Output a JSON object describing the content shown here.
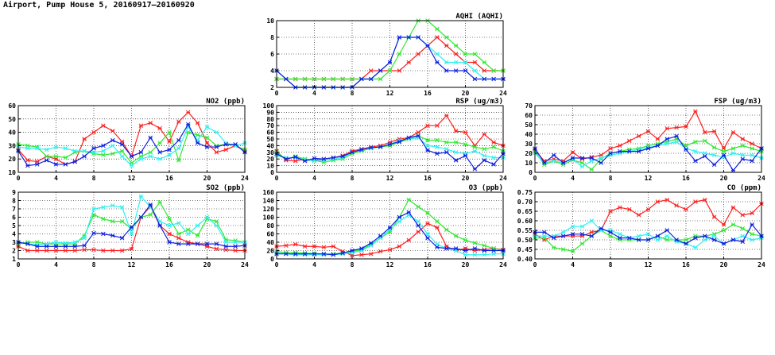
{
  "page": {
    "title": "Airport, Pump House 5, 20160917–20160920"
  },
  "colors": {
    "red": "#ff2020",
    "green": "#30e830",
    "cyan": "#30f0f0",
    "blue": "#1020e0",
    "grid": "#000000",
    "frame": "#000000"
  },
  "chart_data": [
    {
      "id": "aqhi",
      "type": "line",
      "title": "AQHI (AQHI)",
      "xlim": [
        0,
        24
      ],
      "xticks": [
        0,
        4,
        8,
        12,
        16,
        20,
        24
      ],
      "ylim": [
        2,
        10
      ],
      "yticks": [
        2,
        4,
        6,
        8,
        10
      ],
      "grid": true,
      "series": [
        {
          "color": "red",
          "values": [
            3,
            3,
            3,
            3,
            3,
            3,
            3,
            3,
            3,
            3,
            4,
            4,
            4,
            4,
            5,
            6,
            7,
            8,
            7,
            6,
            5,
            5,
            4,
            4,
            4
          ]
        },
        {
          "color": "green",
          "values": [
            3,
            3,
            3,
            3,
            3,
            3,
            3,
            3,
            3,
            3,
            3,
            3,
            4,
            6,
            8,
            10,
            10,
            9,
            8,
            7,
            6,
            6,
            5,
            4,
            4
          ]
        },
        {
          "color": "cyan",
          "values": [
            4,
            3,
            2,
            2,
            2,
            2,
            2,
            2,
            2,
            3,
            3,
            4,
            5,
            8,
            8,
            8,
            7,
            6,
            5,
            5,
            5,
            4,
            3,
            3,
            3
          ]
        },
        {
          "color": "blue",
          "values": [
            4,
            3,
            2,
            2,
            2,
            2,
            2,
            2,
            2,
            3,
            3,
            4,
            5,
            8,
            8,
            8,
            7,
            5,
            4,
            4,
            4,
            3,
            3,
            3,
            3
          ]
        }
      ]
    },
    {
      "id": "no2",
      "type": "line",
      "title": "NO2 (ppb)",
      "xlim": [
        0,
        24
      ],
      "xticks": [
        0,
        4,
        8,
        12,
        16,
        20,
        24
      ],
      "ylim": [
        10,
        60
      ],
      "yticks": [
        10,
        20,
        30,
        40,
        50,
        60
      ],
      "grid": true,
      "series": [
        {
          "color": "red",
          "values": [
            27,
            19,
            18,
            22,
            20,
            16,
            18,
            35,
            40,
            45,
            41,
            33,
            22,
            45,
            47,
            43,
            33,
            48,
            55,
            47,
            32,
            25,
            27,
            30,
            26
          ]
        },
        {
          "color": "green",
          "values": [
            31,
            30,
            29,
            22,
            22,
            21,
            25,
            26,
            24,
            23,
            24,
            26,
            17,
            22,
            25,
            32,
            40,
            19,
            40,
            38,
            36,
            30,
            31,
            30,
            27
          ]
        },
        {
          "color": "cyan",
          "values": [
            29,
            28,
            28,
            27,
            29,
            28,
            26,
            26,
            25,
            26,
            30,
            22,
            15,
            20,
            22,
            20,
            23,
            28,
            44,
            34,
            44,
            40,
            32,
            30,
            32
          ]
        },
        {
          "color": "blue",
          "values": [
            26,
            15,
            16,
            19,
            16,
            16,
            18,
            22,
            28,
            30,
            34,
            31,
            22,
            25,
            36,
            25,
            27,
            34,
            46,
            32,
            29,
            29,
            31,
            31,
            25
          ]
        }
      ]
    },
    {
      "id": "rsp",
      "type": "line",
      "title": "RSP (ug/m3)",
      "xlim": [
        0,
        24
      ],
      "xticks": [
        0,
        4,
        8,
        12,
        16,
        20,
        24
      ],
      "ylim": [
        0,
        100
      ],
      "yticks": [
        0,
        10,
        20,
        30,
        40,
        50,
        60,
        70,
        80,
        90,
        100
      ],
      "grid": true,
      "series": [
        {
          "color": "red",
          "values": [
            32,
            18,
            17,
            20,
            18,
            20,
            22,
            25,
            32,
            35,
            38,
            40,
            45,
            50,
            52,
            60,
            70,
            70,
            85,
            62,
            60,
            40,
            57,
            45,
            40
          ]
        },
        {
          "color": "green",
          "values": [
            30,
            20,
            24,
            20,
            18,
            15,
            18,
            20,
            28,
            32,
            36,
            38,
            40,
            45,
            50,
            55,
            48,
            48,
            45,
            45,
            42,
            38,
            35,
            38,
            32
          ]
        },
        {
          "color": "cyan",
          "values": [
            25,
            22,
            22,
            19,
            17,
            18,
            20,
            22,
            30,
            33,
            36,
            38,
            42,
            48,
            50,
            52,
            40,
            38,
            35,
            30,
            28,
            32,
            25,
            22,
            22
          ]
        },
        {
          "color": "blue",
          "values": [
            28,
            20,
            23,
            17,
            21,
            20,
            22,
            24,
            30,
            34,
            37,
            38,
            42,
            46,
            52,
            55,
            33,
            28,
            30,
            18,
            25,
            5,
            18,
            12,
            28
          ]
        }
      ]
    },
    {
      "id": "fsp",
      "type": "line",
      "title": "FSP (ug/m3)",
      "xlim": [
        0,
        24
      ],
      "xticks": [
        0,
        4,
        8,
        12,
        16,
        20,
        24
      ],
      "ylim": [
        0,
        70
      ],
      "yticks": [
        0,
        10,
        20,
        30,
        40,
        50,
        60,
        70
      ],
      "grid": true,
      "series": [
        {
          "color": "red",
          "values": [
            23,
            12,
            14,
            12,
            21,
            14,
            16,
            18,
            25,
            28,
            33,
            38,
            43,
            35,
            46,
            47,
            48,
            64,
            42,
            43,
            25,
            42,
            35,
            30,
            25
          ]
        },
        {
          "color": "green",
          "values": [
            22,
            8,
            12,
            8,
            13,
            10,
            3,
            14,
            20,
            22,
            24,
            25,
            28,
            30,
            32,
            35,
            28,
            32,
            33,
            26,
            22,
            25,
            28,
            25,
            22
          ]
        },
        {
          "color": "cyan",
          "values": [
            20,
            10,
            12,
            10,
            14,
            6,
            12,
            15,
            18,
            20,
            22,
            24,
            26,
            28,
            30,
            32,
            25,
            22,
            20,
            18,
            16,
            20,
            18,
            18,
            15
          ]
        },
        {
          "color": "blue",
          "values": [
            25,
            10,
            18,
            10,
            15,
            15,
            15,
            10,
            20,
            22,
            22,
            22,
            25,
            28,
            35,
            38,
            24,
            12,
            17,
            8,
            18,
            2,
            14,
            12,
            25
          ]
        }
      ]
    },
    {
      "id": "so2",
      "type": "line",
      "title": "SO2 (ppb)",
      "xlim": [
        0,
        24
      ],
      "xticks": [
        0,
        4,
        8,
        12,
        16,
        20,
        24
      ],
      "ylim": [
        1,
        9
      ],
      "yticks": [
        1,
        2,
        3,
        4,
        5,
        6,
        7,
        8,
        9
      ],
      "grid": true,
      "series": [
        {
          "color": "red",
          "values": [
            2.5,
            2,
            2,
            2,
            2,
            2,
            2,
            2.1,
            2.1,
            2,
            2,
            2,
            2.2,
            6,
            7.3,
            5,
            4,
            3.5,
            3,
            2.8,
            2.5,
            2.2,
            2.1,
            2,
            2
          ]
        },
        {
          "color": "green",
          "values": [
            2.8,
            3,
            3,
            2.8,
            2.8,
            2.8,
            2.8,
            3.8,
            6.3,
            5.8,
            5.5,
            5.5,
            4.6,
            6,
            6.3,
            7.8,
            5.8,
            4,
            4.5,
            3.8,
            5.8,
            5.5,
            3.3,
            3.2,
            3
          ]
        },
        {
          "color": "cyan",
          "values": [
            3,
            2.8,
            2.7,
            2.8,
            3,
            2.9,
            3,
            3.5,
            7,
            7.2,
            7.4,
            7.2,
            4,
            8.5,
            7.2,
            5.5,
            5,
            5.3,
            4,
            5,
            6,
            5,
            3,
            3,
            3
          ]
        },
        {
          "color": "blue",
          "values": [
            3,
            2.8,
            2.5,
            2.5,
            2.5,
            2.5,
            2.5,
            2.6,
            4.1,
            4,
            3.8,
            3.5,
            4.8,
            6,
            7.5,
            5,
            3,
            2.8,
            2.8,
            2.8,
            2.8,
            2.8,
            2.5,
            2.5,
            2.6
          ]
        }
      ]
    },
    {
      "id": "o3",
      "type": "line",
      "title": "O3 (ppb)",
      "xlim": [
        0,
        24
      ],
      "xticks": [
        0,
        4,
        8,
        12,
        16,
        20,
        24
      ],
      "ylim": [
        0,
        160
      ],
      "yticks": [
        0,
        20,
        40,
        60,
        80,
        100,
        120,
        140,
        160
      ],
      "grid": true,
      "series": [
        {
          "color": "red",
          "values": [
            30,
            32,
            35,
            30,
            30,
            28,
            30,
            18,
            8,
            10,
            12,
            18,
            22,
            30,
            45,
            65,
            85,
            75,
            30,
            20,
            25,
            20,
            22,
            25,
            22
          ]
        },
        {
          "color": "green",
          "values": [
            18,
            15,
            15,
            14,
            13,
            12,
            12,
            14,
            18,
            22,
            35,
            50,
            65,
            100,
            142,
            125,
            110,
            90,
            70,
            55,
            45,
            38,
            32,
            25,
            20
          ]
        },
        {
          "color": "cyan",
          "values": [
            15,
            12,
            10,
            10,
            10,
            10,
            10,
            12,
            15,
            20,
            32,
            50,
            70,
            90,
            105,
            90,
            60,
            35,
            25,
            20,
            10,
            10,
            10,
            12,
            12
          ]
        },
        {
          "color": "blue",
          "values": [
            12,
            12,
            12,
            12,
            12,
            12,
            10,
            14,
            20,
            25,
            38,
            55,
            75,
            100,
            112,
            80,
            50,
            28,
            25,
            25,
            20,
            25,
            20,
            20,
            20
          ]
        }
      ]
    },
    {
      "id": "co",
      "type": "line",
      "title": "CO (ppm)",
      "xlim": [
        0,
        24
      ],
      "xticks": [
        0,
        4,
        8,
        12,
        16,
        20,
        24
      ],
      "ylim": [
        0.4,
        0.75
      ],
      "yticks": [
        0.4,
        0.45,
        0.5,
        0.55,
        0.6,
        0.65,
        0.7,
        0.75
      ],
      "grid": true,
      "series": [
        {
          "color": "red",
          "values": [
            0.53,
            0.5,
            0.52,
            0.52,
            0.52,
            0.52,
            0.54,
            0.55,
            0.65,
            0.67,
            0.66,
            0.63,
            0.66,
            0.7,
            0.71,
            0.68,
            0.66,
            0.7,
            0.71,
            0.62,
            0.58,
            0.67,
            0.63,
            0.64,
            0.69
          ]
        },
        {
          "color": "green",
          "values": [
            0.51,
            0.51,
            0.46,
            0.45,
            0.44,
            0.48,
            0.52,
            0.55,
            0.52,
            0.5,
            0.5,
            0.5,
            0.5,
            0.52,
            0.5,
            0.5,
            0.5,
            0.52,
            0.52,
            0.53,
            0.55,
            0.58,
            0.56,
            0.53,
            0.52
          ]
        },
        {
          "color": "cyan",
          "values": [
            0.52,
            0.52,
            0.52,
            0.54,
            0.57,
            0.57,
            0.6,
            0.55,
            0.55,
            0.53,
            0.51,
            0.52,
            0.53,
            0.5,
            0.52,
            0.49,
            0.48,
            0.46,
            0.5,
            0.52,
            0.48,
            0.5,
            0.52,
            0.5,
            0.51
          ]
        },
        {
          "color": "blue",
          "values": [
            0.54,
            0.54,
            0.51,
            0.52,
            0.53,
            0.53,
            0.52,
            0.56,
            0.54,
            0.51,
            0.51,
            0.5,
            0.5,
            0.52,
            0.55,
            0.5,
            0.48,
            0.51,
            0.52,
            0.5,
            0.48,
            0.5,
            0.49,
            0.58,
            0.52
          ]
        }
      ]
    }
  ]
}
